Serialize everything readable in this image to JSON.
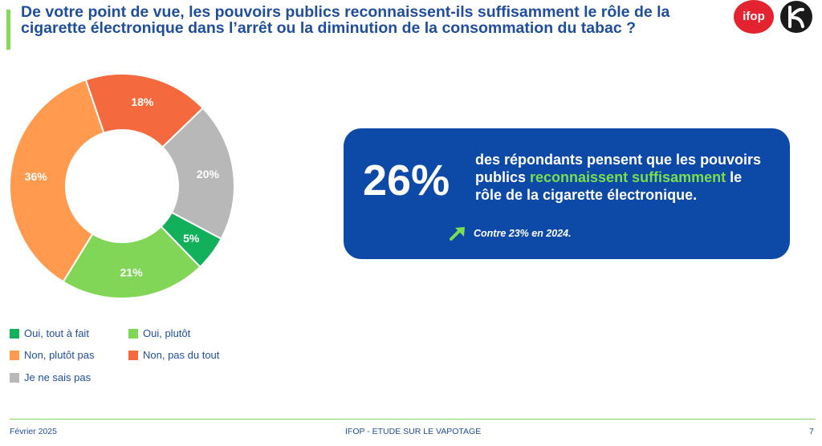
{
  "title": "De votre point de vue, les pouvoirs publics reconnaissent-ils suffisamment le rôle de la cigarette électronique dans l’arrêt ou la diminution de la consommation du tabac ?",
  "logos": {
    "ifop": "ifop"
  },
  "chart_data": {
    "type": "pie",
    "variant": "donut",
    "slices": [
      {
        "label": "Je ne sais pas",
        "value": 20,
        "display": "20%",
        "color": "#b8b8b8"
      },
      {
        "label": "Oui, tout à fait",
        "value": 5,
        "display": "5%",
        "color": "#12b05a"
      },
      {
        "label": "Oui, plutôt",
        "value": 21,
        "display": "21%",
        "color": "#82d657"
      },
      {
        "label": "Non, plutôt pas",
        "value": 36,
        "display": "36%",
        "color": "#ff9a4f"
      },
      {
        "label": "Non, pas du tout",
        "value": 18,
        "display": "18%",
        "color": "#f46a3e"
      }
    ],
    "legend": [
      {
        "label": "Oui, tout à fait",
        "color": "#12b05a"
      },
      {
        "label": "Oui, plutôt",
        "color": "#82d657"
      },
      {
        "label": "Non, plutôt pas",
        "color": "#ff9a4f"
      },
      {
        "label": "Non, pas du tout",
        "color": "#f46a3e"
      },
      {
        "label": "Je ne sais pas",
        "color": "#b8b8b8"
      }
    ]
  },
  "card": {
    "big_value": "26%",
    "text_before": "des répondants pensent que les pouvoirs publics ",
    "text_highlight": "reconnaissent suffisamment",
    "text_after": " le rôle de la cigarette électronique.",
    "note": "Contre 23% en 2024.",
    "arrow_icon": "trend-up-arrow-icon"
  },
  "footer": {
    "date": "Février 2025",
    "center": "IFOP - ETUDE SUR LE VAPOTAGE",
    "page": "7"
  }
}
